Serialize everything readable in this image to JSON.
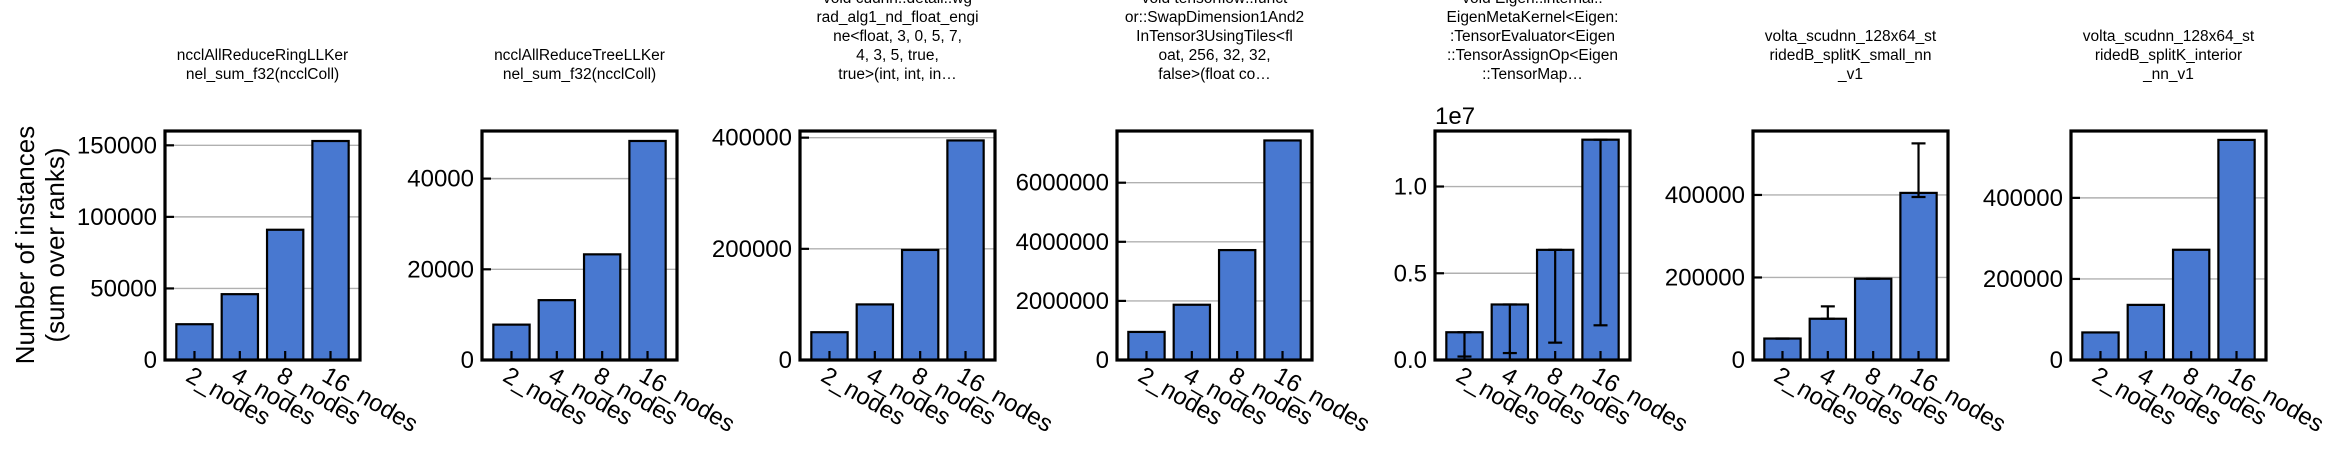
{
  "ylabel_lines": [
    "Number of instances",
    "(sum over ranks)"
  ],
  "bar_color": "#4878d0",
  "chart_data": [
    {
      "type": "bar",
      "title_lines": [
        "ncclAllReduceRingLLKer",
        "nel_sum_f32(ncclColl)"
      ],
      "categories": [
        "2_nodes",
        "4_nodes",
        "8_nodes",
        "16_nodes"
      ],
      "values": [
        25000,
        46000,
        91000,
        153000
      ],
      "ylim": [
        0,
        160000
      ],
      "yticks": [
        0,
        50000,
        100000,
        150000
      ],
      "ytick_labels": [
        "0",
        "50000",
        "100000",
        "150000"
      ],
      "multiplier": "",
      "errors": null
    },
    {
      "type": "bar",
      "title_lines": [
        "ncclAllReduceTreeLLKer",
        "nel_sum_f32(ncclColl)"
      ],
      "categories": [
        "2_nodes",
        "4_nodes",
        "8_nodes",
        "16_nodes"
      ],
      "values": [
        7800,
        13200,
        23300,
        48300
      ],
      "ylim": [
        0,
        50500
      ],
      "yticks": [
        0,
        20000,
        40000
      ],
      "ytick_labels": [
        "0",
        "20000",
        "40000"
      ],
      "multiplier": "",
      "errors": null
    },
    {
      "type": "bar",
      "title_lines": [
        "void cudnn::detail::wg",
        "rad_alg1_nd_float_engi",
        "ne<float, 3, 0, 5, 7,",
        "4, 3, 5, true,",
        "true>(int, int, in…"
      ],
      "categories": [
        "2_nodes",
        "4_nodes",
        "8_nodes",
        "16_nodes"
      ],
      "values": [
        50000,
        100000,
        198000,
        395000
      ],
      "ylim": [
        0,
        412000
      ],
      "yticks": [
        0,
        200000,
        400000
      ],
      "ytick_labels": [
        "0",
        "200000",
        "400000"
      ],
      "multiplier": "",
      "errors": null
    },
    {
      "type": "bar",
      "title_lines": [
        "void tensorflow::funct",
        "or::SwapDimension1And2",
        "InTensor3UsingTiles<fl",
        "oat, 256, 32, 32,",
        "false>(float co…"
      ],
      "categories": [
        "2_nodes",
        "4_nodes",
        "8_nodes",
        "16_nodes"
      ],
      "values": [
        950000,
        1870000,
        3720000,
        7430000
      ],
      "ylim": [
        0,
        7750000
      ],
      "yticks": [
        0,
        2000000,
        4000000,
        6000000
      ],
      "ytick_labels": [
        "0",
        "2000000",
        "4000000",
        "6000000"
      ],
      "multiplier": "",
      "errors": null
    },
    {
      "type": "bar",
      "title_lines": [
        "void Eigen::internal::",
        "EigenMetaKernel<Eigen:",
        ":TensorEvaluator<Eigen",
        "::TensorAssignOp<Eigen",
        "::TensorMap…"
      ],
      "categories": [
        "2_nodes",
        "4_nodes",
        "8_nodes",
        "16_nodes"
      ],
      "values": [
        0.16,
        0.32,
        0.635,
        1.27
      ],
      "ylim": [
        0,
        1.32
      ],
      "yticks": [
        0,
        0.5,
        1.0
      ],
      "ytick_labels": [
        "0.0",
        "0.5",
        "1.0"
      ],
      "multiplier": "1e7",
      "errors": [
        [
          0.16,
          0.02
        ],
        [
          0.32,
          0.04
        ],
        [
          0.635,
          0.1
        ],
        [
          1.27,
          0.2
        ]
      ]
    },
    {
      "type": "bar",
      "title_lines": [
        "volta_scudnn_128x64_st",
        "ridedB_splitK_small_nn",
        "_v1"
      ],
      "categories": [
        "2_nodes",
        "4_nodes",
        "8_nodes",
        "16_nodes"
      ],
      "values": [
        52000,
        100000,
        197000,
        405000
      ],
      "ylim": [
        0,
        555000
      ],
      "yticks": [
        0,
        200000,
        400000
      ],
      "ytick_labels": [
        "0",
        "200000",
        "400000"
      ],
      "multiplier": "",
      "errors": [
        [
          52000,
          52000
        ],
        [
          100000,
          130000
        ],
        [
          197000,
          197000
        ],
        [
          395000,
          525000
        ]
      ]
    },
    {
      "type": "bar",
      "title_lines": [
        "volta_scudnn_128x64_st",
        "ridedB_splitK_interior",
        "_nn_v1"
      ],
      "categories": [
        "2_nodes",
        "4_nodes",
        "8_nodes",
        "16_nodes"
      ],
      "values": [
        68000,
        136000,
        272000,
        543000
      ],
      "ylim": [
        0,
        565000
      ],
      "yticks": [
        0,
        200000,
        400000
      ],
      "ytick_labels": [
        "0",
        "200000",
        "400000"
      ],
      "multiplier": "",
      "errors": null
    }
  ]
}
